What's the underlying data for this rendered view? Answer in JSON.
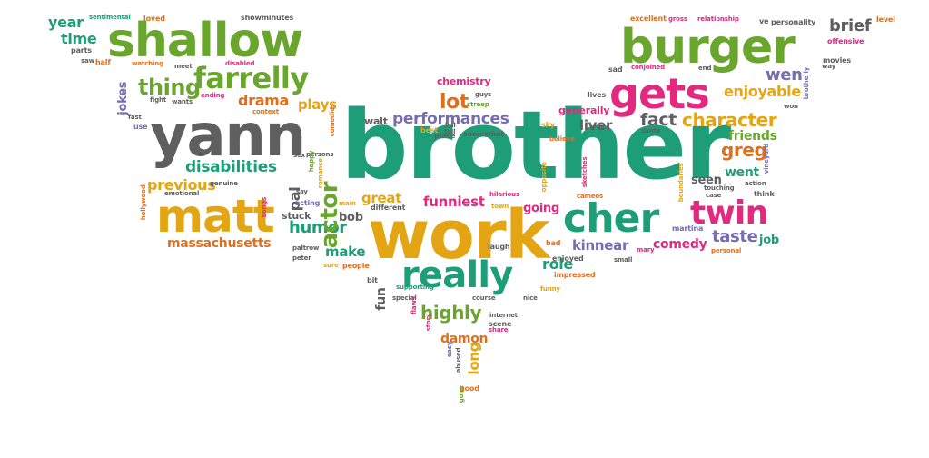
{
  "palette": {
    "green": "#6aa62e",
    "teal": "#1e9e78",
    "pink": "#e0297f",
    "orange": "#df6f1c",
    "gold": "#e4a514",
    "purple": "#766db0",
    "gray": "#5f5f5f"
  },
  "words": [
    {
      "text": "brother",
      "color": "teal"
    },
    {
      "text": "yann",
      "color": "gray"
    },
    {
      "text": "work",
      "color": "gold"
    },
    {
      "text": "burger",
      "color": "green"
    },
    {
      "text": "shallow",
      "color": "green"
    },
    {
      "text": "matt",
      "color": "gold"
    },
    {
      "text": "cher",
      "color": "teal"
    },
    {
      "text": "gets",
      "color": "pink"
    },
    {
      "text": "really",
      "color": "teal"
    },
    {
      "text": "twin",
      "color": "pink"
    },
    {
      "text": "farrelly",
      "color": "green"
    },
    {
      "text": "thing",
      "color": "green"
    },
    {
      "text": "character",
      "color": "gold"
    },
    {
      "text": "performances",
      "color": "purple"
    },
    {
      "text": "disabilities",
      "color": "teal"
    },
    {
      "text": "massachusetts",
      "color": "orange"
    },
    {
      "text": "humor",
      "color": "teal"
    },
    {
      "text": "actor",
      "color": "green"
    },
    {
      "text": "highly",
      "color": "green"
    },
    {
      "text": "enjoyable",
      "color": "gold"
    },
    {
      "text": "drama",
      "color": "orange"
    },
    {
      "text": "fact",
      "color": "gray"
    },
    {
      "text": "lot",
      "color": "orange"
    },
    {
      "text": "wen",
      "color": "purple"
    },
    {
      "text": "greg",
      "color": "orange"
    },
    {
      "text": "friends",
      "color": "green"
    },
    {
      "text": "previous",
      "color": "gold"
    },
    {
      "text": "comedy",
      "color": "pink"
    },
    {
      "text": "kinnear",
      "color": "purple"
    },
    {
      "text": "taste",
      "color": "purple"
    },
    {
      "text": "brief",
      "color": "gray"
    },
    {
      "text": "make",
      "color": "teal"
    },
    {
      "text": "funniest",
      "color": "pink"
    },
    {
      "text": "role",
      "color": "teal"
    },
    {
      "text": "great",
      "color": "gold"
    },
    {
      "text": "damon",
      "color": "orange"
    },
    {
      "text": "liver",
      "color": "gray"
    },
    {
      "text": "plays",
      "color": "gold"
    },
    {
      "text": "time",
      "color": "teal"
    },
    {
      "text": "year",
      "color": "teal"
    },
    {
      "text": "went",
      "color": "teal"
    },
    {
      "text": "pal",
      "color": "gray"
    },
    {
      "text": "bob",
      "color": "gray"
    },
    {
      "text": "going",
      "color": "pink"
    },
    {
      "text": "seen",
      "color": "gray"
    },
    {
      "text": "jokes",
      "color": "purple"
    },
    {
      "text": "job",
      "color": "teal"
    },
    {
      "text": "walt",
      "color": "gray"
    },
    {
      "text": "stuck",
      "color": "gray"
    },
    {
      "text": "fun",
      "color": "gray"
    },
    {
      "text": "long",
      "color": "gold"
    },
    {
      "text": "generally",
      "color": "pink"
    },
    {
      "text": "chemistry",
      "color": "pink"
    },
    {
      "text": "sentimental",
      "color": "teal"
    },
    {
      "text": "loved",
      "color": "orange"
    },
    {
      "text": "showminutes",
      "color": "gray"
    },
    {
      "text": "excellent",
      "color": "orange"
    },
    {
      "text": "gross",
      "color": "pink"
    },
    {
      "text": "relationship",
      "color": "pink"
    },
    {
      "text": "ve",
      "color": "gray"
    },
    {
      "text": "personality",
      "color": "gray"
    },
    {
      "text": "level",
      "color": "orange"
    },
    {
      "text": "offensive",
      "color": "pink"
    },
    {
      "text": "movies",
      "color": "gray"
    },
    {
      "text": "way",
      "color": "gray"
    },
    {
      "text": "brotherly",
      "color": "purple"
    },
    {
      "text": "parts",
      "color": "gray"
    },
    {
      "text": "saw",
      "color": "gray"
    },
    {
      "text": "half",
      "color": "orange"
    },
    {
      "text": "watching",
      "color": "orange"
    },
    {
      "text": "meet",
      "color": "gray"
    },
    {
      "text": "disabled",
      "color": "pink"
    },
    {
      "text": "sad",
      "color": "gray"
    },
    {
      "text": "conjoined",
      "color": "pink"
    },
    {
      "text": "end",
      "color": "gray"
    },
    {
      "text": "fight",
      "color": "gray"
    },
    {
      "text": "wants",
      "color": "gray"
    },
    {
      "text": "ending",
      "color": "pink"
    },
    {
      "text": "context",
      "color": "orange"
    },
    {
      "text": "fast",
      "color": "gray"
    },
    {
      "text": "use",
      "color": "purple"
    },
    {
      "text": "sex",
      "color": "gray"
    },
    {
      "text": "persons",
      "color": "gray"
    },
    {
      "text": "comedies",
      "color": "orange"
    },
    {
      "text": "happy",
      "color": "green"
    },
    {
      "text": "romance",
      "color": "gold"
    },
    {
      "text": "emotional",
      "color": "gray"
    },
    {
      "text": "genuine",
      "color": "gray"
    },
    {
      "text": "say",
      "color": "gray"
    },
    {
      "text": "acting",
      "color": "purple"
    },
    {
      "text": "main",
      "color": "gold"
    },
    {
      "text": "songs",
      "color": "pink"
    },
    {
      "text": "paltrow",
      "color": "gray"
    },
    {
      "text": "peter",
      "color": "gray"
    },
    {
      "text": "hollywood",
      "color": "orange"
    },
    {
      "text": "sure",
      "color": "gold"
    },
    {
      "text": "people",
      "color": "orange"
    },
    {
      "text": "different",
      "color": "gray"
    },
    {
      "text": "hilarious",
      "color": "pink"
    },
    {
      "text": "town",
      "color": "gold"
    },
    {
      "text": "laugh",
      "color": "gray"
    },
    {
      "text": "place",
      "color": "gray"
    },
    {
      "text": "hal",
      "color": "gray"
    },
    {
      "text": "best",
      "color": "gold"
    },
    {
      "text": "tell",
      "color": "gray"
    },
    {
      "text": "somewhat",
      "color": "gray"
    },
    {
      "text": "guys",
      "color": "gray"
    },
    {
      "text": "streep",
      "color": "green"
    },
    {
      "text": "lives",
      "color": "gray"
    },
    {
      "text": "santa",
      "color": "gray"
    },
    {
      "text": "believe",
      "color": "orange"
    },
    {
      "text": "sky",
      "color": "gold"
    },
    {
      "text": "opposite",
      "color": "gold"
    },
    {
      "text": "sketches",
      "color": "pink"
    },
    {
      "text": "cameos",
      "color": "orange"
    },
    {
      "text": "bad",
      "color": "orange"
    },
    {
      "text": "enjoyed",
      "color": "gray"
    },
    {
      "text": "small",
      "color": "gray"
    },
    {
      "text": "mary",
      "color": "pink"
    },
    {
      "text": "martina",
      "color": "purple"
    },
    {
      "text": "touching",
      "color": "gray"
    },
    {
      "text": "case",
      "color": "gray"
    },
    {
      "text": "think",
      "color": "gray"
    },
    {
      "text": "action",
      "color": "gray"
    },
    {
      "text": "vineyard",
      "color": "purple"
    },
    {
      "text": "won",
      "color": "gray"
    },
    {
      "text": "personal",
      "color": "orange"
    },
    {
      "text": "boundaries",
      "color": "gold"
    },
    {
      "text": "supporting",
      "color": "teal"
    },
    {
      "text": "impressed",
      "color": "orange"
    },
    {
      "text": "funny",
      "color": "gold"
    },
    {
      "text": "bit",
      "color": "gray"
    },
    {
      "text": "special",
      "color": "gray"
    },
    {
      "text": "course",
      "color": "gray"
    },
    {
      "text": "nice",
      "color": "gray"
    },
    {
      "text": "internet",
      "color": "gray"
    },
    {
      "text": "scene",
      "color": "gray"
    },
    {
      "text": "share",
      "color": "pink"
    },
    {
      "text": "flaws",
      "color": "pink"
    },
    {
      "text": "story",
      "color": "pink"
    },
    {
      "text": "easy",
      "color": "purple"
    },
    {
      "text": "abused",
      "color": "gray"
    },
    {
      "text": "good",
      "color": "orange"
    },
    {
      "text": "gone",
      "color": "green"
    }
  ]
}
